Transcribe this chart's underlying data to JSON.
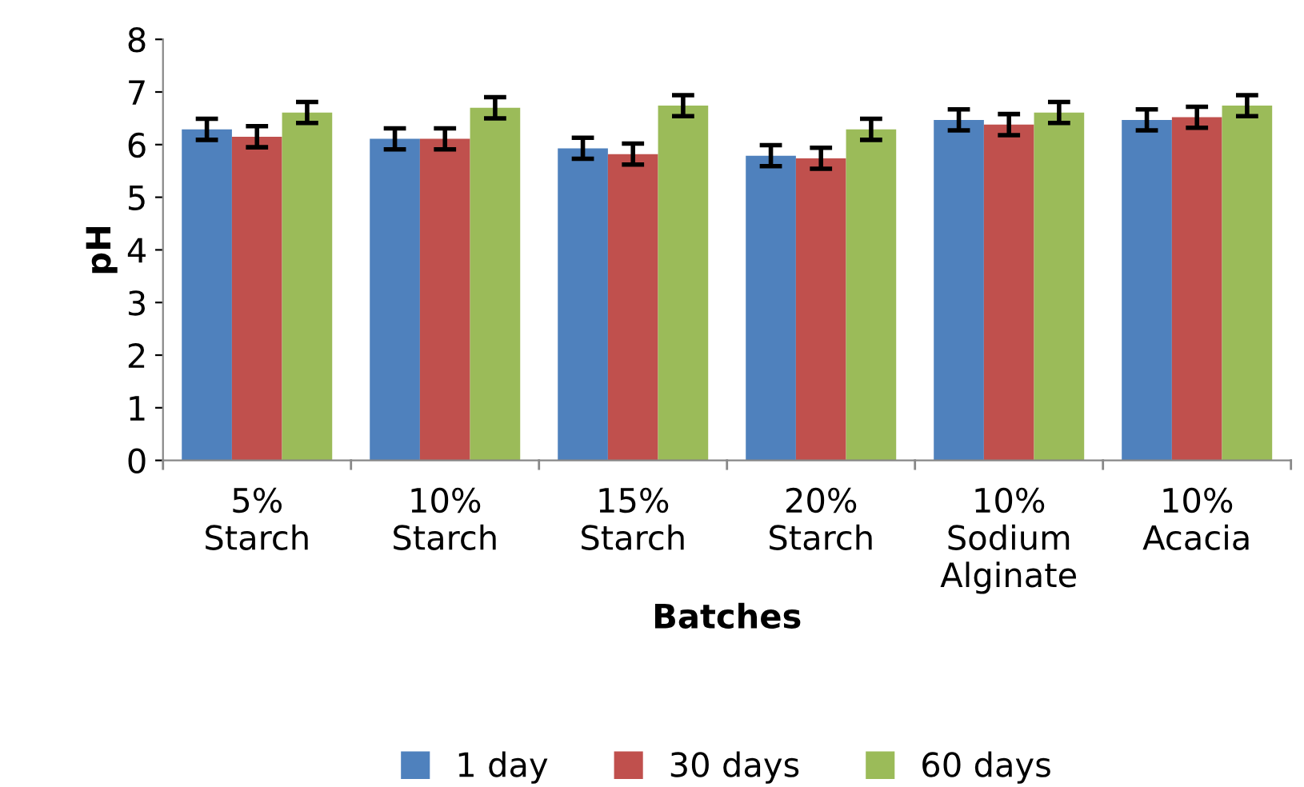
{
  "chart_data": {
    "type": "bar",
    "xlabel": "Batches",
    "ylabel": "pH",
    "categories": [
      "5%\nStarch",
      "10%\nStarch",
      "15%\nStarch",
      "20%\nStarch",
      "10%\nSodium\nAlginate",
      "10%\nAcacia"
    ],
    "series": [
      {
        "name": "1 day",
        "color": "#4f81bd",
        "values": [
          6.29,
          6.11,
          5.93,
          5.79,
          6.47,
          6.47
        ],
        "errors": [
          0.2,
          0.2,
          0.2,
          0.2,
          0.2,
          0.2
        ]
      },
      {
        "name": "30 days",
        "color": "#c0504d",
        "values": [
          6.15,
          6.11,
          5.82,
          5.74,
          6.38,
          6.52
        ],
        "errors": [
          0.2,
          0.2,
          0.2,
          0.2,
          0.2,
          0.2
        ]
      },
      {
        "name": "60 days",
        "color": "#9bbb59",
        "values": [
          6.61,
          6.7,
          6.74,
          6.29,
          6.61,
          6.74
        ],
        "errors": [
          0.2,
          0.2,
          0.2,
          0.2,
          0.2,
          0.2
        ]
      }
    ],
    "ylim": [
      0,
      8
    ],
    "yticks": [
      0,
      1,
      2,
      3,
      4,
      5,
      6,
      7,
      8
    ],
    "legend": "bottom",
    "grid": false
  }
}
